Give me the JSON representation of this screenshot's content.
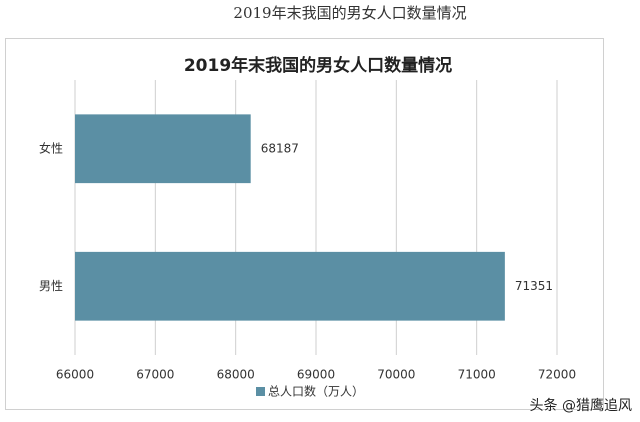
{
  "caption": "2019年末我国的男女人口数量情况",
  "watermark": "头条 @猎鹰追风",
  "chart_data": {
    "type": "bar",
    "orientation": "horizontal",
    "title": "2019年末我国的男女人口数量情况",
    "categories": [
      "女性",
      "男性"
    ],
    "series": [
      {
        "name": "总人口数（万人）",
        "color": "#5b8fa4",
        "values": [
          68187,
          71351
        ]
      }
    ],
    "xlim": [
      66000,
      72000
    ],
    "xticks": [
      66000,
      67000,
      68000,
      69000,
      70000,
      71000,
      72000
    ],
    "grid": true,
    "legend": "bottom"
  }
}
